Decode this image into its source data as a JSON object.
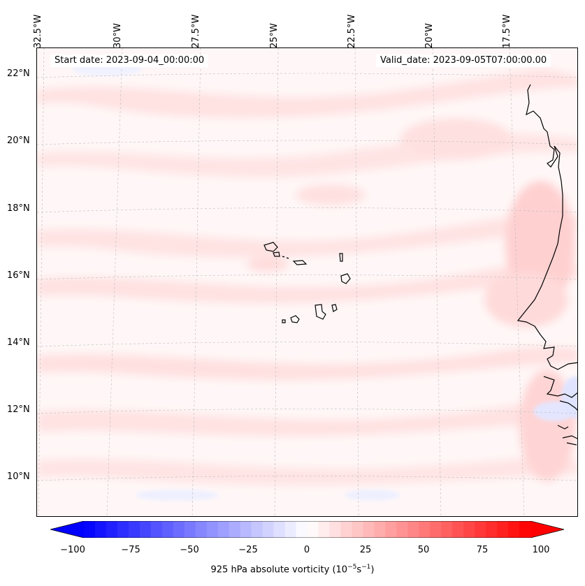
{
  "map": {
    "start_date": "Start date: 2023-09-04_00:00:00",
    "valid_date": "Valid_date: 2023-09-05T07:00:00.00",
    "longitude_labels": [
      "32.5°W",
      "30°W",
      "27.5°W",
      "25°W",
      "22.5°W",
      "20°W",
      "17.5°W"
    ],
    "latitude_labels": [
      "22°N",
      "20°N",
      "18°N",
      "16°N",
      "14°N",
      "12°N",
      "10°N"
    ],
    "field": "925 hPa absolute vorticity"
  },
  "colorbar": {
    "ticks": [
      "−100",
      "−75",
      "−50",
      "−25",
      "0",
      "25",
      "50",
      "75",
      "100"
    ],
    "label_prefix": "925 hPa absolute vorticity (10",
    "label_exp1": "−5",
    "label_mid": "s",
    "label_exp2": "−1",
    "label_suffix": ")",
    "min": -100,
    "max": 100,
    "colors": {
      "negative": "#0000ff",
      "zero": "#ffffff",
      "positive": "#ff0000"
    }
  }
}
